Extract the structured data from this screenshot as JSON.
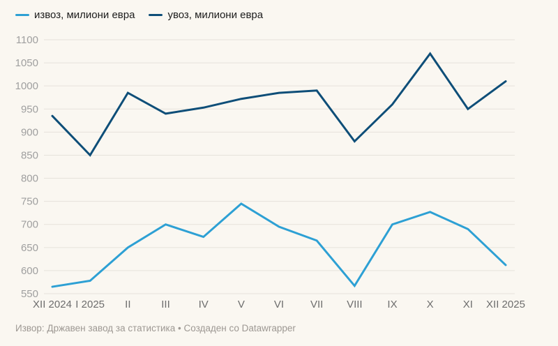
{
  "colors": {
    "background": "#faf7f1",
    "grid": "#e6e2db",
    "y_label": "#9f9f9f",
    "x_label": "#6d6d6d",
    "legend_text": "#1c1c1c",
    "footer_text": "#9d9893",
    "export_line": "#2da0d4",
    "import_line": "#0e4e78"
  },
  "legend": [
    {
      "id": "exports",
      "label": "извоз, милиони евра",
      "color": "#2da0d4"
    },
    {
      "id": "imports",
      "label": "увоз, милиони евра",
      "color": "#0e4e78"
    }
  ],
  "footer": "Извор: Државен завод за статистика • Создаден со Datawrapper",
  "chart_data": {
    "type": "line",
    "title": "",
    "xlabel": "",
    "ylabel": "милиони евра",
    "categories": [
      "XII 2024",
      "I 2025",
      "II",
      "III",
      "IV",
      "V",
      "VI",
      "VII",
      "VIII",
      "IX",
      "X",
      "XI",
      "XII 2025"
    ],
    "series": [
      {
        "id": "exports",
        "name": "извоз, милиони евра",
        "color": "#2da0d4",
        "values": [
          565,
          578,
          650,
          700,
          673,
          745,
          695,
          665,
          567,
          700,
          727,
          690,
          612
        ]
      },
      {
        "id": "imports",
        "name": "увоз, милиони евра",
        "color": "#0e4e78",
        "values": [
          935,
          850,
          985,
          940,
          953,
          972,
          985,
          990,
          880,
          960,
          1070,
          950,
          1010
        ]
      }
    ],
    "ylim": [
      550,
      1100
    ],
    "ytick_step": 50,
    "yticks": [
      550,
      600,
      650,
      700,
      750,
      800,
      850,
      900,
      950,
      1000,
      1050,
      1100
    ],
    "grid": true,
    "legend_position": "top-left"
  }
}
